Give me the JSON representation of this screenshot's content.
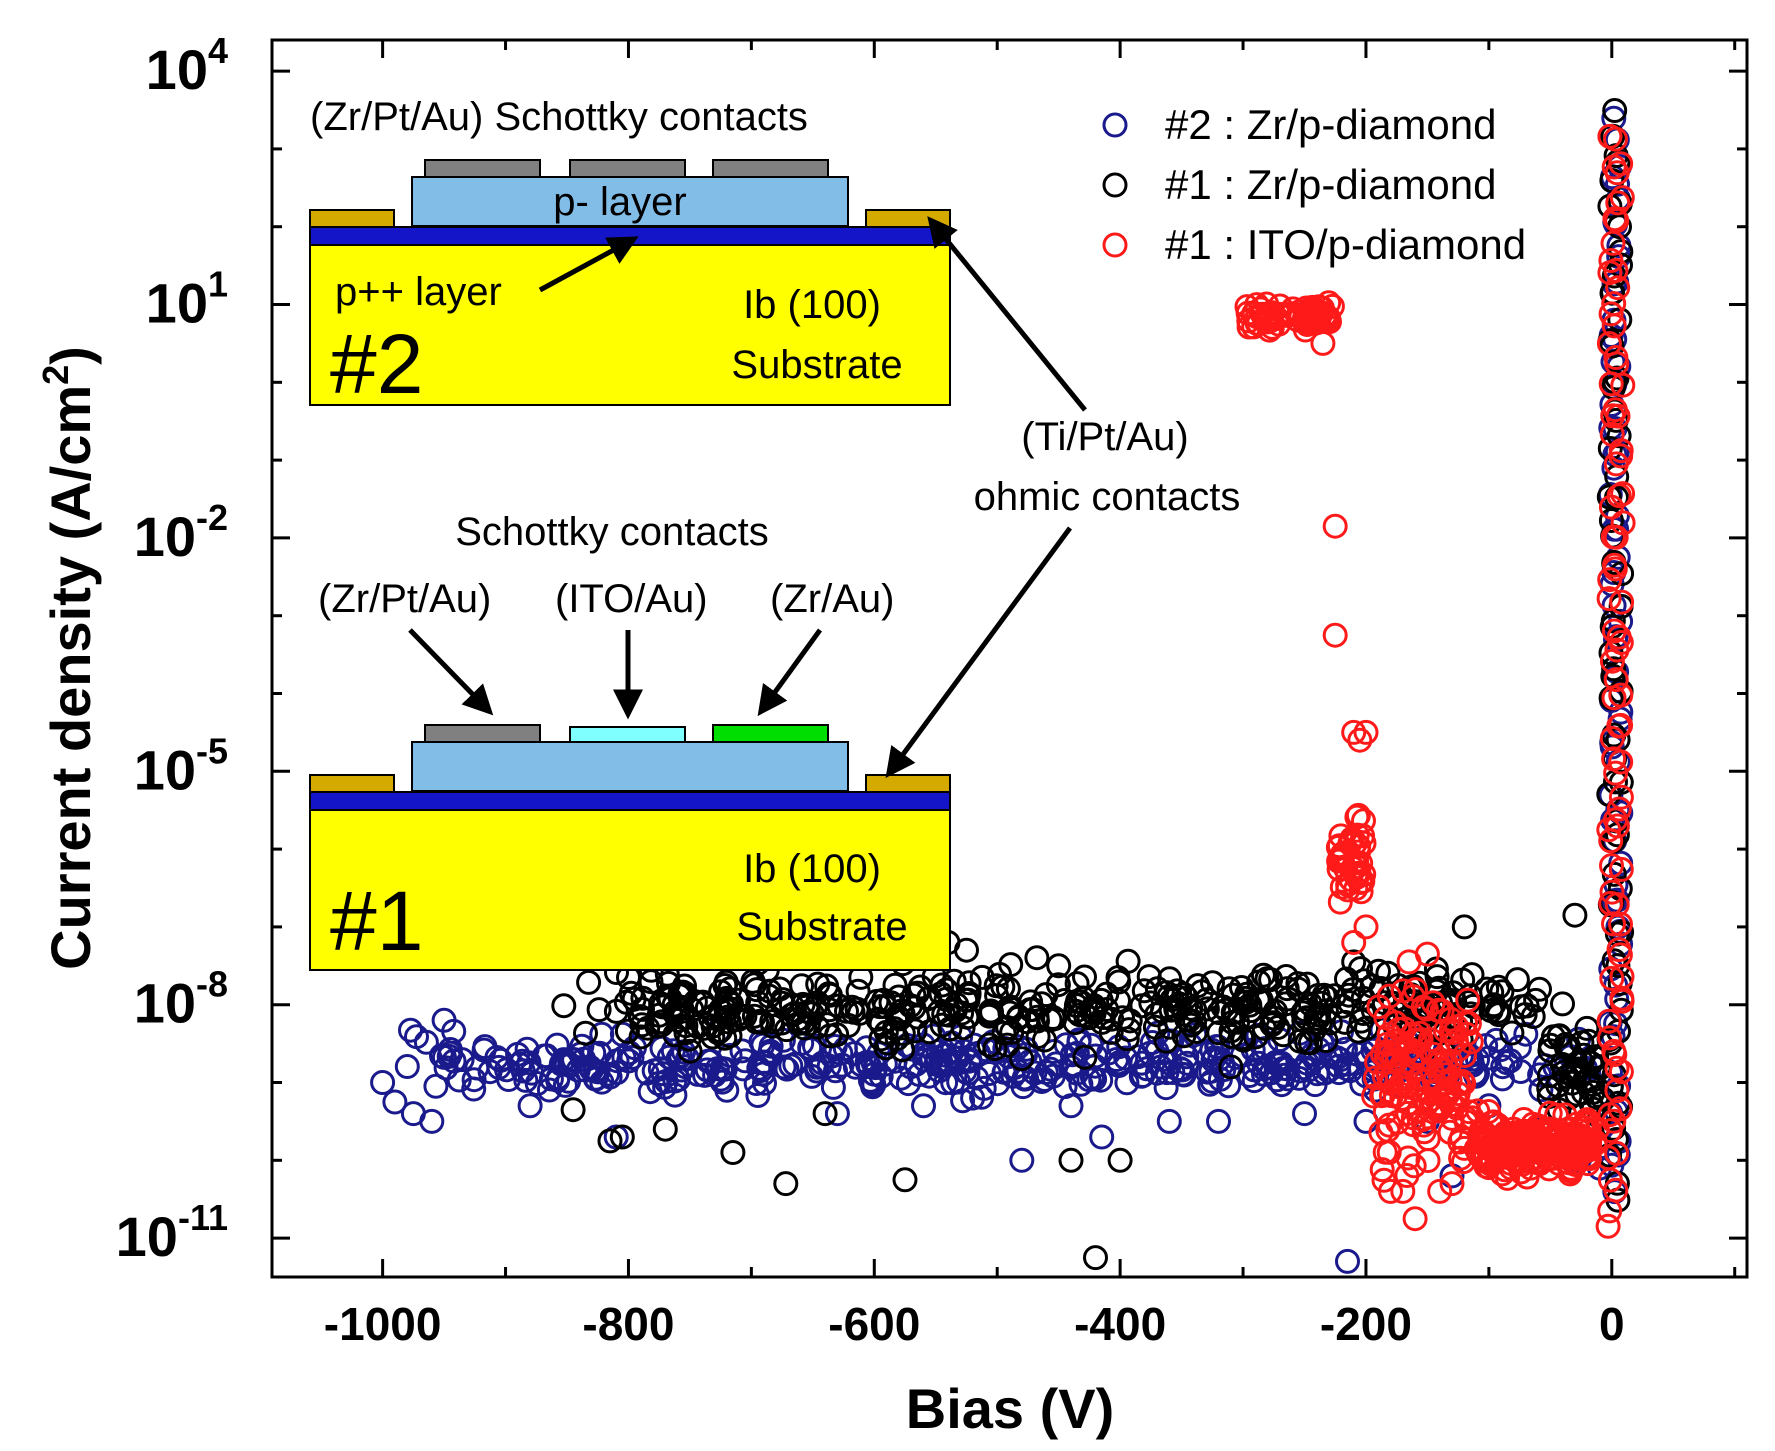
{
  "chart_data": {
    "type": "scatter",
    "xlabel": "Bias (V)",
    "ylabel": "Current density (A/cm",
    "ylabel_sup": "2",
    "ylabel_close": ")",
    "xlim": [
      -1090,
      110
    ],
    "ylim_log10": [
      -11.5,
      4.4
    ],
    "yscale": "log",
    "x_ticks": [
      {
        "value": -1000,
        "label": "-1000"
      },
      {
        "value": -800,
        "label": "-800"
      },
      {
        "value": -600,
        "label": "-600"
      },
      {
        "value": -400,
        "label": "-400"
      },
      {
        "value": -200,
        "label": "-200"
      },
      {
        "value": 0,
        "label": "0"
      }
    ],
    "y_ticks": [
      {
        "exp": 4,
        "base": "10",
        "sup": "4"
      },
      {
        "exp": 1,
        "base": "10",
        "sup": "1"
      },
      {
        "exp": -2,
        "base": "10",
        "sup": "-2"
      },
      {
        "exp": -5,
        "base": "10",
        "sup": "-5"
      },
      {
        "exp": -8,
        "base": "10",
        "sup": "-8"
      },
      {
        "exp": -11,
        "base": "10",
        "sup": "-11"
      }
    ],
    "legend": {
      "position": "top-right",
      "entries": [
        {
          "label": "#2 : Zr/p-diamond",
          "color": "#1a1a8c"
        },
        {
          "label": "#1 : Zr/p-diamond",
          "color": "#000000"
        },
        {
          "label": "#1 : ITO/p-diamond",
          "color": "#ff1a1a"
        }
      ]
    },
    "series": [
      {
        "name": "#2 : Zr/p-diamond",
        "color": "#1a1a8c",
        "segments": [
          {
            "x0": -1000,
            "x1": -2,
            "n": 420,
            "center": -8.75,
            "spread": 0.22,
            "seed": 11
          },
          {
            "x0": -2,
            "x1": 8,
            "n": 70,
            "y0": -10.3,
            "y1": 3.3,
            "seed": 12
          }
        ],
        "points": [
          {
            "x": -1000,
            "y": -9.0
          },
          {
            "x": -990,
            "y": -9.25
          },
          {
            "x": -975,
            "y": -9.4
          },
          {
            "x": -960,
            "y": -9.5
          },
          {
            "x": -950,
            "y": -8.2
          },
          {
            "x": -880,
            "y": -9.3
          },
          {
            "x": -810,
            "y": -9.7
          },
          {
            "x": -720,
            "y": -9.1
          },
          {
            "x": -630,
            "y": -9.4
          },
          {
            "x": -560,
            "y": -9.3
          },
          {
            "x": -520,
            "y": -9.2
          },
          {
            "x": -480,
            "y": -10.0
          },
          {
            "x": -440,
            "y": -9.3
          },
          {
            "x": -415,
            "y": -9.7
          },
          {
            "x": -360,
            "y": -9.5
          },
          {
            "x": -320,
            "y": -9.5
          },
          {
            "x": -250,
            "y": -9.4
          },
          {
            "x": -215,
            "y": -11.3
          },
          {
            "x": -200,
            "y": -9.5
          },
          {
            "x": -150,
            "y": -9.5
          },
          {
            "x": -130,
            "y": -10.2
          },
          {
            "x": -100,
            "y": -9.3
          },
          {
            "x": -60,
            "y": -9.6
          },
          {
            "x": -30,
            "y": -10.0
          },
          {
            "x": -10,
            "y": -10.1
          }
        ]
      },
      {
        "name": "#1 : Zr/p-diamond",
        "color": "#000000",
        "segments": [
          {
            "x0": -855,
            "x1": -30,
            "n": 440,
            "center": -8.05,
            "spread": 0.3,
            "seed": 21
          },
          {
            "x0": -55,
            "x1": -5,
            "n": 45,
            "center": -8.8,
            "spread": 0.4,
            "seed": 22
          },
          {
            "x0": -3,
            "x1": 9,
            "n": 70,
            "y0": -10.4,
            "y1": 3.4,
            "seed": 23
          }
        ],
        "points": [
          {
            "x": -845,
            "y": -9.35
          },
          {
            "x": -815,
            "y": -9.75
          },
          {
            "x": -805,
            "y": -9.7
          },
          {
            "x": -800,
            "y": -7.65
          },
          {
            "x": -790,
            "y": -7.3
          },
          {
            "x": -770,
            "y": -9.6
          },
          {
            "x": -715,
            "y": -9.9
          },
          {
            "x": -672,
            "y": -10.3
          },
          {
            "x": -640,
            "y": -9.4
          },
          {
            "x": -575,
            "y": -10.25
          },
          {
            "x": -540,
            "y": -7.2
          },
          {
            "x": -525,
            "y": -7.3
          },
          {
            "x": -450,
            "y": -7.5
          },
          {
            "x": -440,
            "y": -10.0
          },
          {
            "x": -420,
            "y": -11.25
          },
          {
            "x": -400,
            "y": -10.0
          },
          {
            "x": -310,
            "y": -8.8
          },
          {
            "x": -210,
            "y": -7.45
          },
          {
            "x": -120,
            "y": -7.0
          },
          {
            "x": -30,
            "y": -6.85
          }
        ]
      },
      {
        "name": "#1 : ITO/p-diamond",
        "color": "#ff1a1a",
        "segments": [
          {
            "x0": -300,
            "x1": -225,
            "n": 70,
            "center": 0.85,
            "spread": 0.1,
            "seed": 31
          },
          {
            "x0": -225,
            "x1": -200,
            "n": 40,
            "y0": -6.4,
            "y1": -5.9,
            "spread": 0.7,
            "seed": 32
          },
          {
            "x0": -198,
            "x1": -110,
            "n": 140,
            "center": -8.9,
            "spread": 0.65,
            "seed": 33
          },
          {
            "x0": -115,
            "x1": -5,
            "n": 200,
            "center": -9.8,
            "spread": 0.22,
            "seed": 34
          },
          {
            "x0": -3,
            "x1": 10,
            "n": 90,
            "y0": -10.7,
            "y1": 3.2,
            "seed": 35
          }
        ],
        "points": [
          {
            "x": -235,
            "y": 0.5
          },
          {
            "x": -225,
            "y": -1.85
          },
          {
            "x": -225,
            "y": -3.25
          },
          {
            "x": -210,
            "y": -4.5
          },
          {
            "x": -205,
            "y": -4.6
          },
          {
            "x": -200,
            "y": -4.5
          },
          {
            "x": -200,
            "y": -7.0
          },
          {
            "x": -210,
            "y": -7.2
          },
          {
            "x": -165,
            "y": -7.45
          },
          {
            "x": -150,
            "y": -7.35
          },
          {
            "x": -180,
            "y": -10.4
          },
          {
            "x": -170,
            "y": -10.4
          },
          {
            "x": -160,
            "y": -10.75
          },
          {
            "x": -140,
            "y": -10.4
          },
          {
            "x": -130,
            "y": -10.3
          }
        ]
      }
    ]
  },
  "inset_top": {
    "contacts_title": "(Zr/Pt/Au) Schottky contacts",
    "p_layer": "p- layer",
    "ppp_layer": "p++ layer",
    "substrate_line1": "Ib (100)",
    "substrate_line2": "Substrate",
    "sample": "#2"
  },
  "inset_bottom": {
    "contacts_title": "Schottky contacts",
    "contact1": "(Zr/Pt/Au)",
    "contact2": "(ITO/Au)",
    "contact3": "(Zr/Au)",
    "substrate_line1": "Ib (100)",
    "substrate_line2": "Substrate",
    "sample": "#1"
  },
  "ohmic_annotation": {
    "line1": "(Ti/Pt/Au)",
    "line2": "ohmic contacts"
  },
  "colors": {
    "substrate": "#ffff00",
    "p_layer": "#82bde8",
    "ppp_layer": "#1414c8",
    "schottky_zr_pt_au": "#808080",
    "ito": "#7fffff",
    "zr_au": "#00dd00",
    "ohmic": "#d4aa00"
  }
}
